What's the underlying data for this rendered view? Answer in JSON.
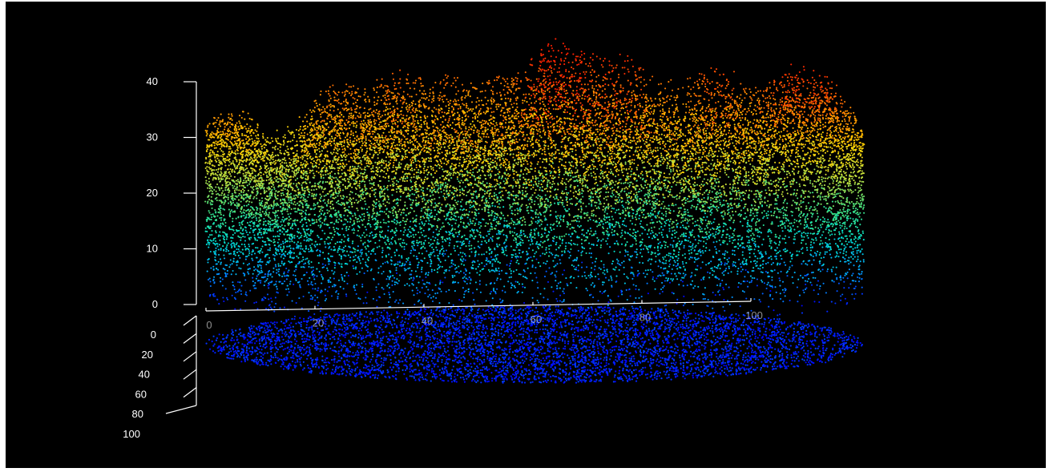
{
  "chart_data": {
    "type": "scatter",
    "subtype": "3d-point-cloud",
    "title": "",
    "background": "#000000",
    "axis_color": "#ffffff",
    "colormap": "jet",
    "colormap_stops": [
      "#0000ff",
      "#00a0ff",
      "#00e0d0",
      "#40e080",
      "#c0e040",
      "#ffd000",
      "#ff8000",
      "#ff2000"
    ],
    "z_axis": {
      "label": "",
      "ticks": [
        "0",
        "10",
        "20",
        "30",
        "40"
      ],
      "range": [
        0,
        40
      ]
    },
    "x_axis": {
      "label": "",
      "ticks": [
        "0",
        "20",
        "40",
        "60",
        "80",
        "100"
      ],
      "range": [
        0,
        100
      ]
    },
    "y_axis": {
      "label": "",
      "ticks": [
        "0",
        "20",
        "40",
        "60",
        "80",
        "100"
      ],
      "range": [
        0,
        100
      ]
    },
    "tree_crowns": [
      {
        "x": 3,
        "top": 33
      },
      {
        "x": 12,
        "top": 28
      },
      {
        "x": 21,
        "top": 36
      },
      {
        "x": 29,
        "top": 37
      },
      {
        "x": 37,
        "top": 36
      },
      {
        "x": 45,
        "top": 36
      },
      {
        "x": 54,
        "top": 42
      },
      {
        "x": 62,
        "top": 40
      },
      {
        "x": 70,
        "top": 35
      },
      {
        "x": 78,
        "top": 38
      },
      {
        "x": 86,
        "top": 37
      },
      {
        "x": 91,
        "top": 40
      },
      {
        "x": 98,
        "top": 23
      }
    ]
  }
}
